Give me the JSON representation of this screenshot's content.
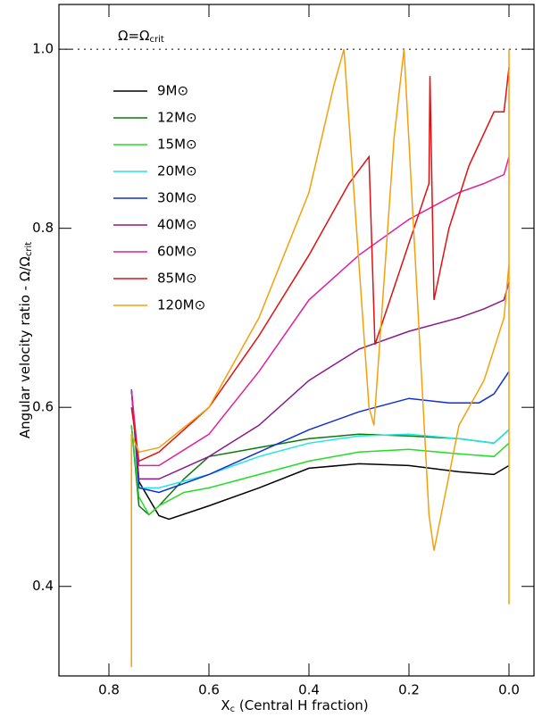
{
  "chart_data": {
    "type": "line",
    "y_label": {
      "text": "Angular velocity ratio - Ω/Ω",
      "sub": "crit"
    },
    "x_label": {
      "text": "X",
      "sub": "c",
      "rest": " (Central H fraction)"
    },
    "annotation": {
      "text": "Ω=Ω",
      "sub": "crit"
    },
    "hline": 1.0,
    "xlim": [
      0.9,
      -0.05
    ],
    "ylim": [
      0.3,
      1.05
    ],
    "xticks": [
      0.8,
      0.6,
      0.4,
      0.2,
      {
        "value": 0,
        "label": "0.0"
      }
    ],
    "yticks": [
      0.4,
      0.6,
      0.8,
      {
        "value": 1,
        "label": "1.0"
      }
    ],
    "series": [
      {
        "name": "9M⊙",
        "color": "#000000",
        "x": [
          0.755,
          0.74,
          0.7,
          0.68,
          0.6,
          0.5,
          0.4,
          0.3,
          0.2,
          0.1,
          0.03,
          0.0
        ],
        "values": [
          0.62,
          0.517,
          0.479,
          0.475,
          0.49,
          0.51,
          0.532,
          0.537,
          0.535,
          0.528,
          0.525,
          0.535
        ]
      },
      {
        "name": "12M⊙",
        "color": "#0a7a0a",
        "x": [
          0.755,
          0.74,
          0.72,
          0.7,
          0.65,
          0.6,
          0.5,
          0.4,
          0.3,
          0.2,
          0.1,
          0.03,
          0.0
        ],
        "values": [
          0.58,
          0.49,
          0.48,
          0.49,
          0.52,
          0.545,
          0.555,
          0.565,
          0.57,
          0.568,
          0.565,
          0.56,
          0.575
        ]
      },
      {
        "name": "15M⊙",
        "color": "#22dd22",
        "x": [
          0.755,
          0.74,
          0.72,
          0.7,
          0.65,
          0.6,
          0.5,
          0.4,
          0.3,
          0.2,
          0.1,
          0.03,
          0.0
        ],
        "values": [
          0.58,
          0.5,
          0.48,
          0.49,
          0.505,
          0.51,
          0.525,
          0.54,
          0.55,
          0.553,
          0.548,
          0.545,
          0.56
        ]
      },
      {
        "name": "20M⊙",
        "color": "#22e5e5",
        "x": [
          0.755,
          0.74,
          0.7,
          0.6,
          0.5,
          0.4,
          0.3,
          0.2,
          0.1,
          0.03,
          0.0
        ],
        "values": [
          0.62,
          0.51,
          0.51,
          0.525,
          0.545,
          0.56,
          0.568,
          0.57,
          0.565,
          0.56,
          0.575
        ]
      },
      {
        "name": "30M⊙",
        "color": "#1030d0",
        "x": [
          0.755,
          0.74,
          0.7,
          0.6,
          0.5,
          0.4,
          0.3,
          0.2,
          0.12,
          0.06,
          0.03,
          0.0
        ],
        "values": [
          0.62,
          0.51,
          0.505,
          0.525,
          0.55,
          0.575,
          0.595,
          0.61,
          0.605,
          0.605,
          0.615,
          0.64
        ]
      },
      {
        "name": "40M⊙",
        "color": "#8a1a8a",
        "x": [
          0.755,
          0.74,
          0.7,
          0.6,
          0.5,
          0.4,
          0.3,
          0.2,
          0.1,
          0.05,
          0.01,
          0.0
        ],
        "values": [
          0.62,
          0.52,
          0.52,
          0.545,
          0.58,
          0.63,
          0.665,
          0.685,
          0.7,
          0.71,
          0.72,
          0.74
        ]
      },
      {
        "name": "60M⊙",
        "color": "#e0209a",
        "x": [
          0.755,
          0.74,
          0.7,
          0.6,
          0.5,
          0.4,
          0.3,
          0.2,
          0.1,
          0.05,
          0.01,
          0.0
        ],
        "values": [
          0.62,
          0.535,
          0.535,
          0.57,
          0.64,
          0.72,
          0.77,
          0.81,
          0.84,
          0.85,
          0.86,
          0.88
        ]
      },
      {
        "name": "85M⊙",
        "color": "#e01010",
        "x": [
          0.755,
          0.74,
          0.7,
          0.6,
          0.5,
          0.4,
          0.32,
          0.28,
          0.268,
          0.16,
          0.158,
          0.15,
          0.12,
          0.08,
          0.03,
          0.01,
          0.0
        ],
        "values": [
          0.6,
          0.54,
          0.55,
          0.6,
          0.68,
          0.77,
          0.85,
          0.88,
          0.67,
          0.85,
          0.97,
          0.72,
          0.8,
          0.87,
          0.93,
          0.93,
          0.98
        ]
      },
      {
        "name": "120M⊙",
        "color": "#f5a00a",
        "x": [
          0.755,
          0.755,
          0.74,
          0.7,
          0.6,
          0.5,
          0.4,
          0.35,
          0.33,
          0.28,
          0.27,
          0.23,
          0.21,
          0.16,
          0.15,
          0.1,
          0.05,
          0.01,
          0.0,
          0.0,
          0.0
        ],
        "values": [
          0.31,
          0.57,
          0.55,
          0.555,
          0.6,
          0.7,
          0.84,
          0.96,
          1.0,
          0.6,
          0.58,
          0.9,
          1.0,
          0.48,
          0.44,
          0.58,
          0.63,
          0.7,
          0.76,
          1.0,
          0.38
        ]
      }
    ]
  }
}
